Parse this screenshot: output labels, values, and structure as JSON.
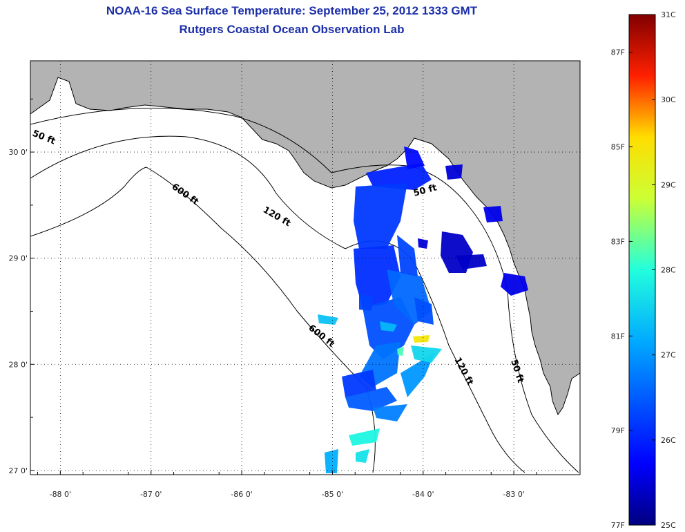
{
  "title": {
    "line1": "NOAA-16 Sea Surface Temperature:  September 25, 2012 1333 GMT",
    "line2": "Rutgers Coastal Ocean Observation Lab"
  },
  "map": {
    "lon_range": [
      -88.33,
      -82.27
    ],
    "lat_range": [
      26.96,
      30.86
    ],
    "lon_ticks": [
      {
        "value": -88,
        "label": "-88 0'"
      },
      {
        "value": -87,
        "label": "-87 0'"
      },
      {
        "value": -86,
        "label": "-86 0'"
      },
      {
        "value": -85,
        "label": "-85 0'"
      },
      {
        "value": -84,
        "label": "-84 0'"
      },
      {
        "value": -83,
        "label": "-83 0'"
      }
    ],
    "lat_ticks": [
      {
        "value": 30,
        "label": "30 0'"
      },
      {
        "value": 29,
        "label": "29 0'"
      },
      {
        "value": 28,
        "label": "28 0'"
      },
      {
        "value": 27,
        "label": "27 0'"
      }
    ],
    "contour_labels": [
      "50 ft",
      "600 ft",
      "120 ft",
      "50 ft",
      "600 ft",
      "120 ft",
      "50 ft"
    ],
    "land_color": "#b3b3b3",
    "ocean_color": "#ffffff"
  },
  "colorbar": {
    "celsius_range": [
      25,
      31
    ],
    "celsius_labels": [
      "31C",
      "30C",
      "29C",
      "28C",
      "27C",
      "26C",
      "25C"
    ],
    "fahrenheit_labels": [
      {
        "value": 87,
        "label": "87F"
      },
      {
        "value": 85,
        "label": "85F"
      },
      {
        "value": 83,
        "label": "83F"
      },
      {
        "value": 81,
        "label": "81F"
      },
      {
        "value": 79,
        "label": "79F"
      },
      {
        "value": 77,
        "label": "77F"
      }
    ]
  },
  "sst_patches": [
    {
      "temp": 26.0
    },
    {
      "temp": 25.8
    },
    {
      "temp": 26.2
    },
    {
      "temp": 26.1
    },
    {
      "temp": 26.4
    },
    {
      "temp": 26.6
    },
    {
      "temp": 26.3
    },
    {
      "temp": 26.7
    },
    {
      "temp": 26.2
    },
    {
      "temp": 26.5
    },
    {
      "temp": 26.8
    },
    {
      "temp": 27.0
    },
    {
      "temp": 27.6
    },
    {
      "temp": 27.9
    },
    {
      "temp": 27.7
    },
    {
      "temp": 26.4
    },
    {
      "temp": 26.3
    },
    {
      "temp": 27.2
    },
    {
      "temp": 27.4
    },
    {
      "temp": 27.3
    },
    {
      "temp": 25.5
    },
    {
      "temp": 25.4
    },
    {
      "temp": 25.4
    },
    {
      "temp": 25.6
    },
    {
      "temp": 25.6
    },
    {
      "temp": 25.5
    },
    {
      "temp": 29.4
    },
    {
      "temp": 28.2
    }
  ]
}
